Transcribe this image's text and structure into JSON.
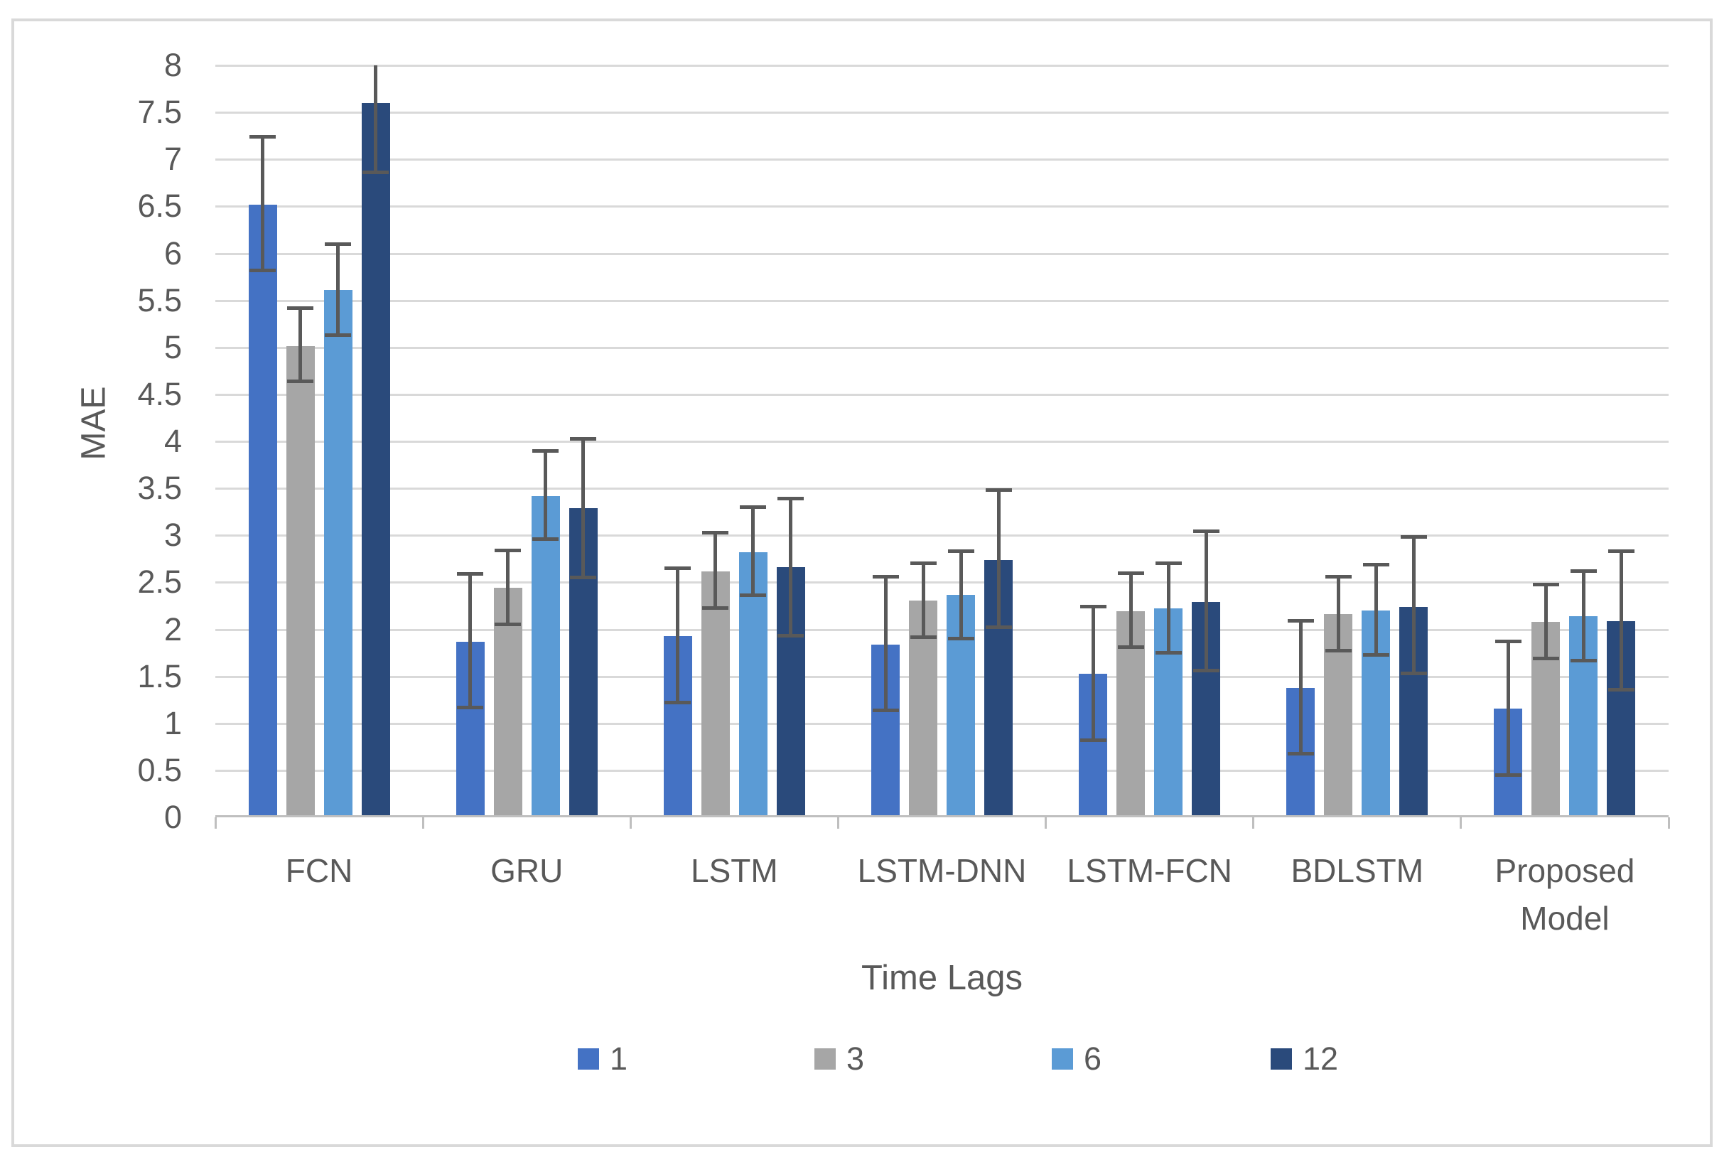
{
  "chart_data": {
    "type": "bar",
    "title": "",
    "xlabel": "Time Lags",
    "ylabel": "MAE",
    "ylim": [
      0,
      8
    ],
    "y_tick_step": 0.5,
    "y_ticks": [
      "8",
      "7.5",
      "7",
      "6.5",
      "6",
      "5.5",
      "5",
      "4.5",
      "4",
      "3.5",
      "3",
      "2.5",
      "2",
      "1.5",
      "1",
      "0.5",
      "0"
    ],
    "grid": true,
    "legend_position": "bottom",
    "categories": [
      "FCN",
      "GRU",
      "LSTM",
      "LSTM-DNN",
      "LSTM-FCN",
      "BDLSTM",
      "Proposed Model"
    ],
    "series": [
      {
        "name": "1",
        "color": "#4472c4",
        "values": [
          6.52,
          1.87,
          1.93,
          1.84,
          1.53,
          1.38,
          1.16
        ],
        "error_low": [
          5.82,
          1.17,
          1.22,
          1.14,
          0.82,
          0.68,
          0.45
        ],
        "error_high": [
          7.24,
          2.59,
          2.65,
          2.56,
          2.24,
          2.09,
          1.87
        ]
      },
      {
        "name": "3",
        "color": "#a6a6a6",
        "values": [
          5.01,
          2.44,
          2.62,
          2.31,
          2.19,
          2.16,
          2.08
        ],
        "error_low": [
          4.64,
          2.05,
          2.23,
          1.92,
          1.81,
          1.77,
          1.69
        ],
        "error_high": [
          5.42,
          2.84,
          3.03,
          2.7,
          2.6,
          2.56,
          2.48
        ]
      },
      {
        "name": "6",
        "color": "#5b9bd5",
        "values": [
          5.61,
          3.42,
          2.82,
          2.37,
          2.22,
          2.2,
          2.14
        ],
        "error_low": [
          5.13,
          2.96,
          2.36,
          1.9,
          1.75,
          1.73,
          1.67
        ],
        "error_high": [
          6.1,
          3.9,
          3.3,
          2.83,
          2.7,
          2.69,
          2.62
        ]
      },
      {
        "name": "12",
        "color": "#2a4a7b",
        "values": [
          7.6,
          3.29,
          2.66,
          2.74,
          2.29,
          2.24,
          2.09
        ],
        "error_low": [
          6.86,
          2.55,
          1.93,
          2.02,
          1.56,
          1.53,
          1.36
        ],
        "error_high": [
          8.0,
          4.03,
          3.39,
          3.48,
          3.04,
          2.98,
          2.83
        ]
      }
    ],
    "error_bar_color": "#595959"
  },
  "styles": {
    "background": "#ffffff",
    "text_color": "#595959",
    "gridline_color": "#d9d9d9",
    "axis_line_color": "#bfbfbf",
    "frame_color": "#d9d9d9"
  }
}
